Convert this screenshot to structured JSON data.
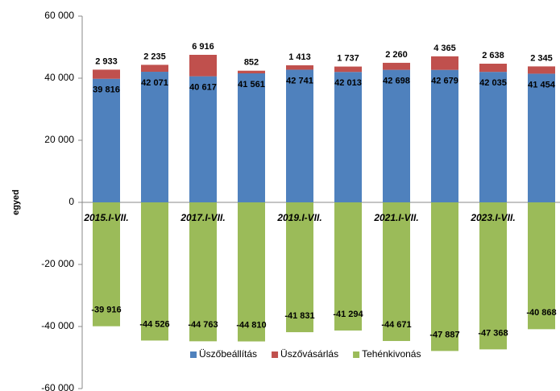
{
  "chart_data": {
    "type": "stacked_bar",
    "y_label": "egyed",
    "categories": [
      "2015.I-VII.",
      null,
      "2017.I-VII.",
      null,
      "2019.I-VII.",
      null,
      "2021.I-VII.",
      null,
      "2023.I-VII.",
      null
    ],
    "series": [
      {
        "name": "Üszőbeállítás",
        "color": "#4f81bd",
        "values": [
          39816,
          42071,
          40617,
          41561,
          42741,
          42013,
          42698,
          42679,
          42035,
          41454
        ],
        "value_labels": [
          "39 816",
          "42 071",
          "40 617",
          "41 561",
          "42 741",
          "42 013",
          "42 698",
          "42 679",
          "42 035",
          "41 454"
        ]
      },
      {
        "name": "Üszővásárlás",
        "color": "#c0504d",
        "values": [
          2933,
          2235,
          6916,
          852,
          1413,
          1737,
          2260,
          4365,
          2638,
          2345
        ],
        "value_labels": [
          "2 933",
          "2 235",
          "6 916",
          "852",
          "1 413",
          "1 737",
          "2 260",
          "4 365",
          "2 638",
          "2 345"
        ]
      },
      {
        "name": "Tehénkivonás",
        "color": "#9bbb59",
        "values": [
          -39916,
          -44526,
          -44763,
          -44810,
          -41831,
          -41294,
          -44671,
          -47887,
          -47368,
          -40868
        ],
        "value_labels": [
          "-39 916",
          "-44 526",
          "-44 763",
          "-44 810",
          "-41 831",
          "-41 294",
          "-44 671",
          "-47 887",
          "-47 368",
          "-40 868"
        ]
      }
    ],
    "ylim": [
      -60000,
      60000
    ],
    "yticks": [
      {
        "value": -60000,
        "label": "-60 000"
      },
      {
        "value": -40000,
        "label": "-40 000"
      },
      {
        "value": -20000,
        "label": "-20 000"
      },
      0,
      {
        "value": 20000,
        "label": "20 000"
      },
      {
        "value": 40000,
        "label": "40 000"
      },
      {
        "value": 60000,
        "label": "60 000"
      }
    ],
    "grid": false,
    "legend": "bottom"
  }
}
